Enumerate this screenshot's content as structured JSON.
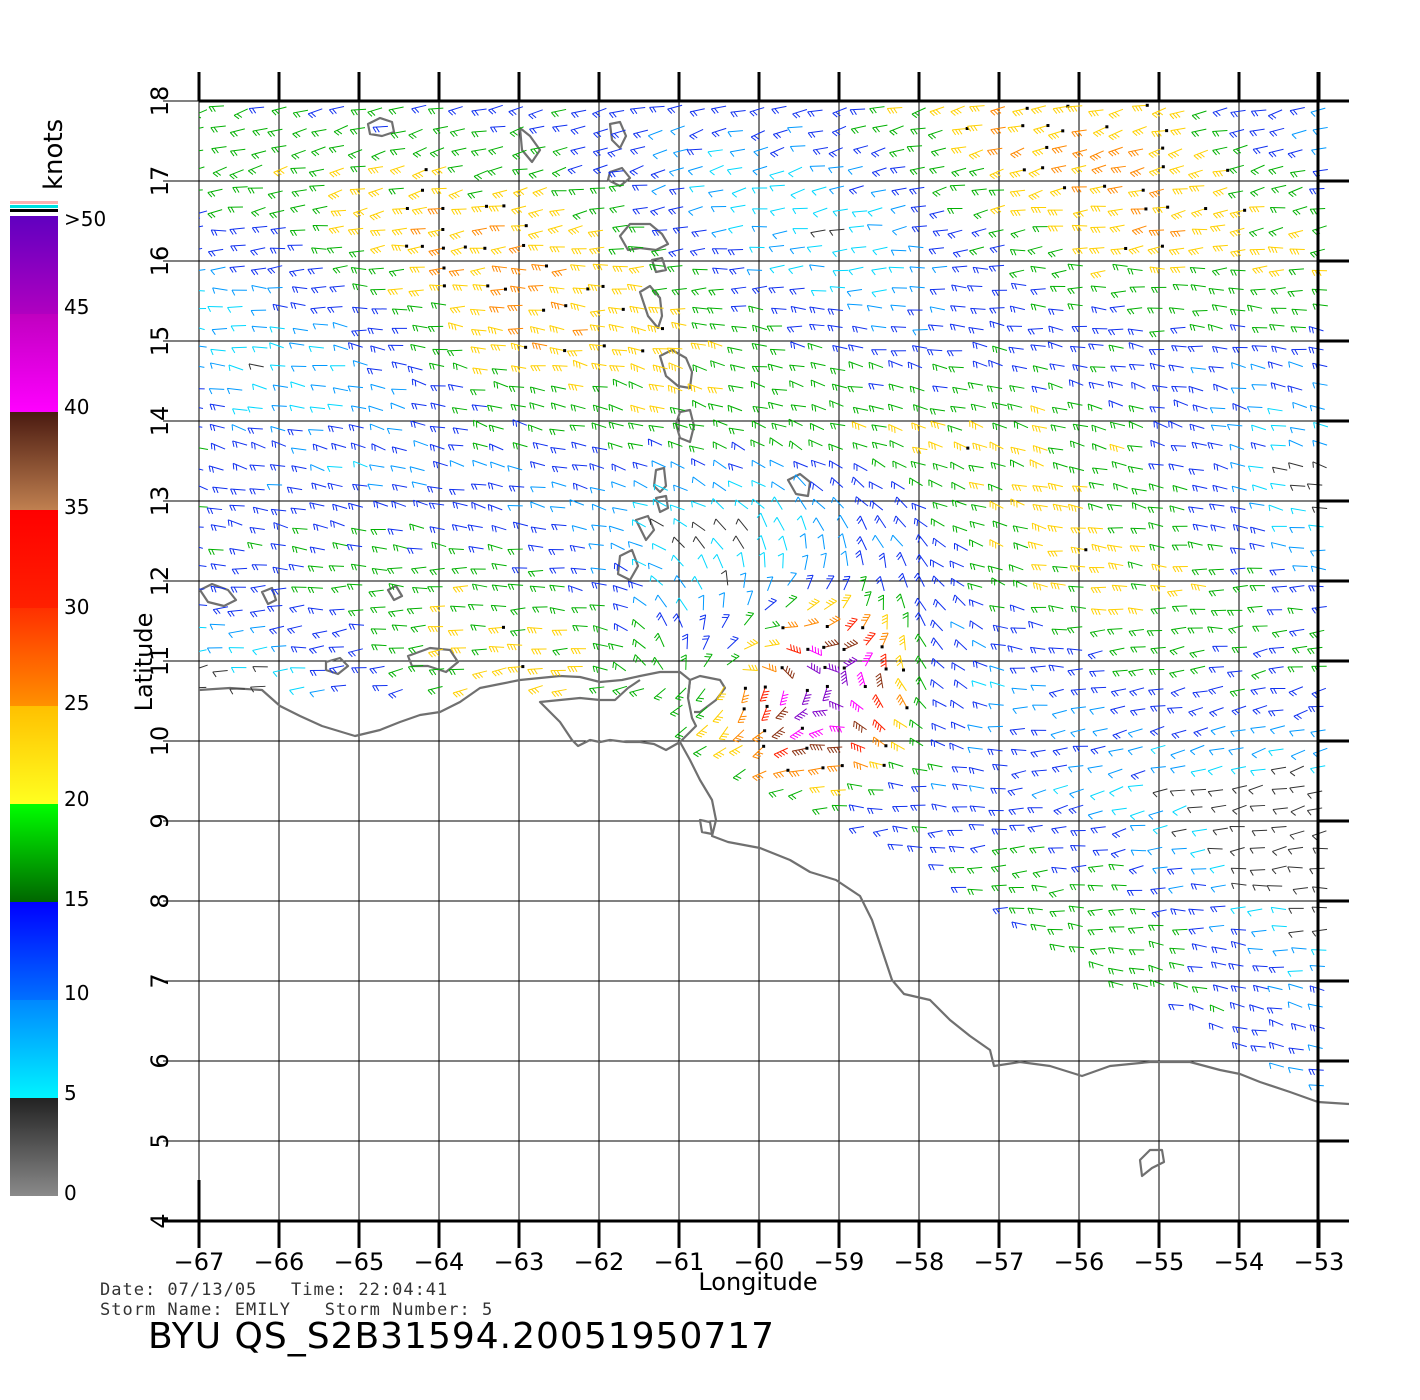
{
  "map": {
    "xlabel": "Longitude",
    "ylabel": "Latitude",
    "lon_ticks": [
      -67,
      -66,
      -65,
      -64,
      -63,
      -62,
      -61,
      -60,
      -59,
      -58,
      -57,
      -56,
      -55,
      -54,
      -53
    ],
    "lat_ticks": [
      4,
      5,
      6,
      7,
      8,
      9,
      10,
      11,
      12,
      13,
      14,
      15,
      16,
      17,
      18
    ]
  },
  "colorbar": {
    "unit": "knots",
    "labels": [
      ">50",
      "45",
      "40",
      "35",
      "30",
      "25",
      "20",
      "15",
      "10",
      "5",
      "0"
    ],
    "bands": [
      {
        "from": 0,
        "to": 5,
        "colors": [
          "#8a8a8a",
          "#222222"
        ]
      },
      {
        "from": 5,
        "to": 10,
        "colors": [
          "#00f4ff",
          "#0088ff"
        ]
      },
      {
        "from": 10,
        "to": 15,
        "colors": [
          "#0070ff",
          "#0000ff"
        ]
      },
      {
        "from": 15,
        "to": 20,
        "colors": [
          "#006600",
          "#00ff00"
        ]
      },
      {
        "from": 20,
        "to": 25,
        "colors": [
          "#ffff20",
          "#ffc000"
        ]
      },
      {
        "from": 25,
        "to": 30,
        "colors": [
          "#ff9000",
          "#ff3000"
        ]
      },
      {
        "from": 30,
        "to": 35,
        "colors": [
          "#ff2000",
          "#ff0000"
        ]
      },
      {
        "from": 35,
        "to": 40,
        "colors": [
          "#c08050",
          "#4a1a10"
        ]
      },
      {
        "from": 40,
        "to": 45,
        "colors": [
          "#ff00ff",
          "#c000c0"
        ]
      },
      {
        "from": 45,
        "to": 50,
        "colors": [
          "#b000c0",
          "#6000c0"
        ]
      }
    ]
  },
  "wind_field": {
    "center_lon": -59.1,
    "center_lat": 10.7,
    "peak_speed_knots": 50
  },
  "info": {
    "line1": "Date: 07/13/05   Time: 22:04:41",
    "line2": "Storm Name: EMILY   Storm Number: 5",
    "title": "BYU QS_S2B31594.20051950717"
  }
}
